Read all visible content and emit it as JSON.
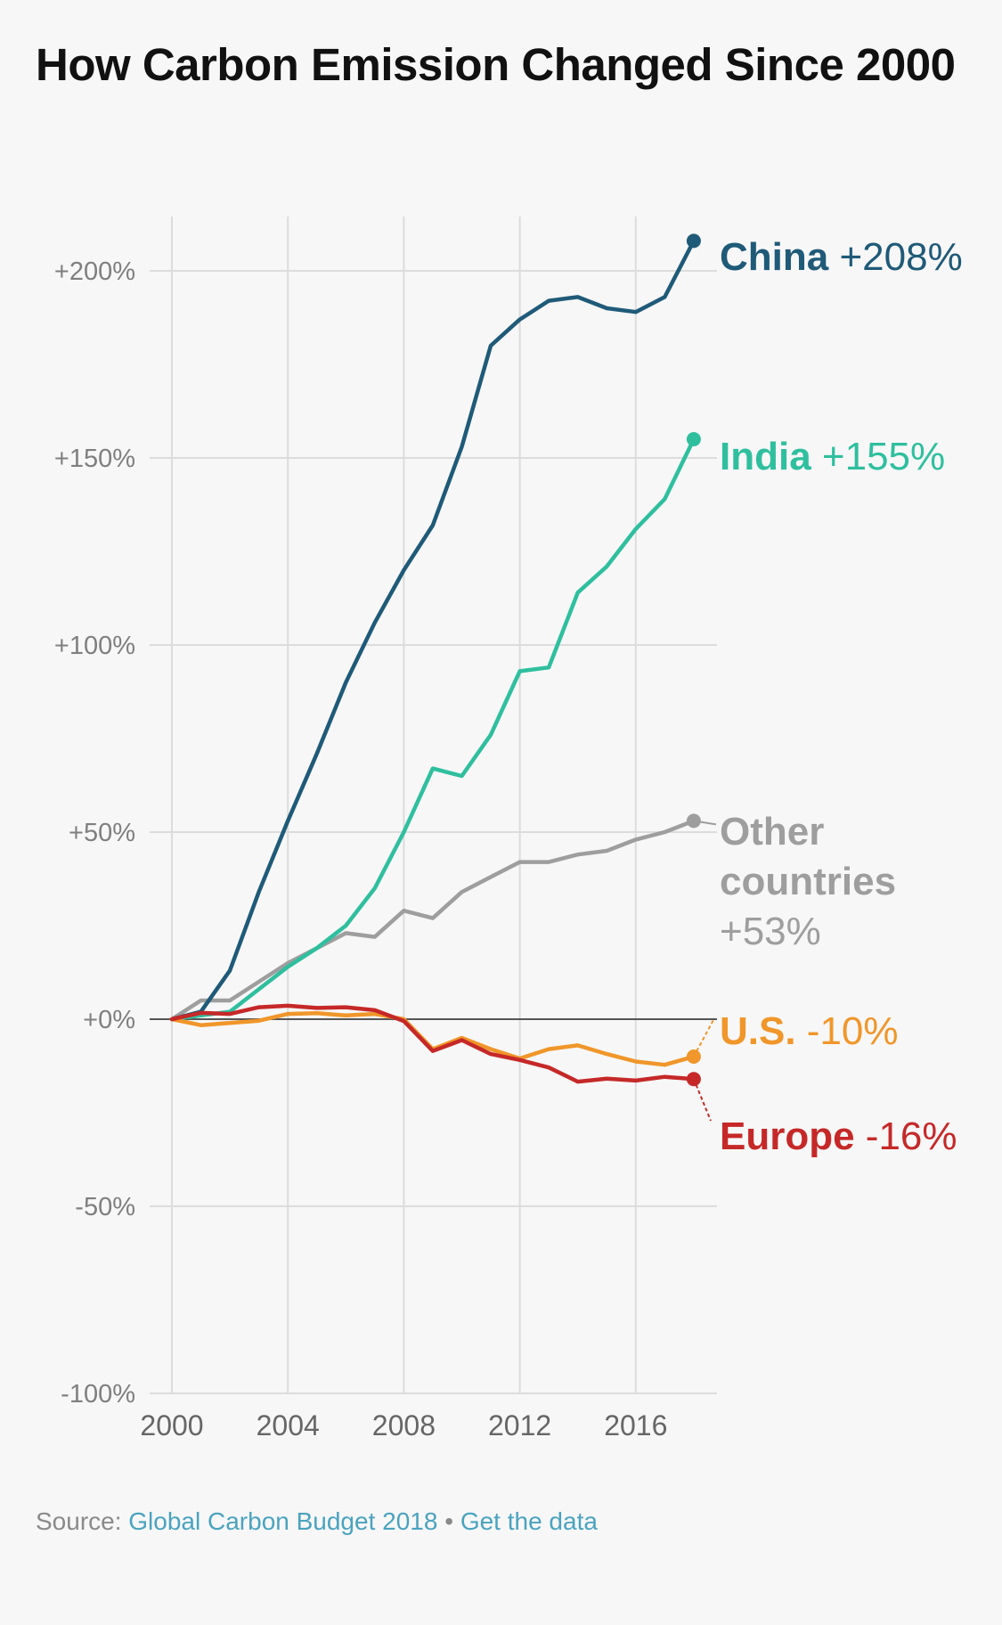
{
  "title": "How Carbon Emission Changed Since 2000",
  "footer": {
    "source_label": "Source:",
    "source_link": "Global Carbon Budget 2018",
    "separator": "•",
    "data_link": "Get the data"
  },
  "chart_data": {
    "type": "line",
    "title": "How Carbon Emission Changed Since 2000",
    "xlabel": "",
    "ylabel": "",
    "x": [
      2000,
      2001,
      2002,
      2003,
      2004,
      2005,
      2006,
      2007,
      2008,
      2009,
      2010,
      2011,
      2012,
      2013,
      2014,
      2015,
      2016,
      2017,
      2018
    ],
    "xlim": [
      2000,
      2018
    ],
    "ylim": [
      -100,
      200
    ],
    "x_ticks": [
      2000,
      2004,
      2008,
      2012,
      2016
    ],
    "x_tick_labels": [
      "2000",
      "2004",
      "2008",
      "2012",
      "2016"
    ],
    "y_ticks": [
      200,
      150,
      100,
      50,
      0,
      -50,
      -100
    ],
    "y_tick_labels": [
      "+200%",
      "+150%",
      "+100%",
      "+50%",
      "+0%",
      "-50%",
      "-100%"
    ],
    "grid": true,
    "legend": "direct-labels-right",
    "series": [
      {
        "name": "China",
        "label_name": "China",
        "label_value": "+208%",
        "color": "#1f5a78",
        "values": [
          0,
          2,
          13,
          34,
          53,
          71,
          90,
          106,
          120,
          132,
          153,
          180,
          187,
          192,
          193,
          190,
          189,
          193,
          208
        ]
      },
      {
        "name": "India",
        "label_name": "India",
        "label_value": "+155%",
        "color": "#2fbf9e",
        "values": [
          0,
          1,
          2,
          8,
          14,
          19,
          25,
          35,
          50,
          67,
          65,
          76,
          93,
          94,
          114,
          121,
          131,
          139,
          155
        ]
      },
      {
        "name": "Other countries",
        "label_name": "Other countries",
        "label_value": "+53%",
        "color": "#9e9e9e",
        "values": [
          0,
          5,
          5,
          10,
          15,
          19,
          23,
          22,
          29,
          27,
          34,
          38,
          42,
          42,
          44,
          45,
          48,
          50,
          53
        ]
      },
      {
        "name": "U.S.",
        "label_name": "U.S.",
        "label_value": "-10%",
        "color": "#f0962a",
        "values": [
          0,
          -1.6,
          -1,
          -0.4,
          1.4,
          1.6,
          1,
          1.4,
          0,
          -8,
          -5,
          -8,
          -10.5,
          -8,
          -7,
          -9.3,
          -11.3,
          -12.2,
          -10
        ]
      },
      {
        "name": "Europe",
        "label_name": "Europe",
        "label_value": "-16%",
        "color": "#c62828",
        "values": [
          0,
          1.7,
          1.4,
          3.2,
          3.6,
          3,
          3.2,
          2.4,
          -0.5,
          -8.5,
          -5.6,
          -9.3,
          -10.9,
          -12.9,
          -16.7,
          -15.9,
          -16.4,
          -15.4,
          -16
        ]
      }
    ]
  }
}
